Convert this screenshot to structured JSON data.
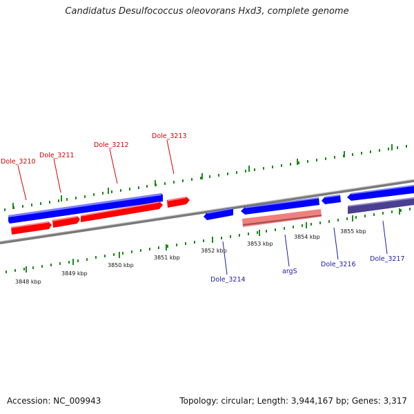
{
  "header": {
    "title": "Candidatus Desulfococcus oleovorans Hxd3, complete genome"
  },
  "footer": {
    "accession": "Accession: NC_009943",
    "stats": "Topology: circular; Length: 3,944,167 bp; Genes: 3,317"
  },
  "scale": {
    "ticks": [
      "3848 kbp",
      "3849 kbp",
      "3850 kbp",
      "3851 kbp",
      "3852 kbp",
      "3853 kbp",
      "3854 kbp",
      "3855 kbp"
    ]
  },
  "genes": {
    "forward_labels": [
      "Dole_3210",
      "Dole_3211",
      "Dole_3212",
      "Dole_3213"
    ],
    "reverse_labels": [
      "Dole_3214",
      "argS",
      "Dole_3216",
      "Dole_3217"
    ]
  },
  "colors": {
    "cds_forward": "#ff0000",
    "cds_reverse": "#0000ff",
    "rna": "#f08080",
    "highlight": "#4b3f8f",
    "backbone": "#8a8a8a",
    "ticks": "#1a8a1a",
    "label_forward": "#d30000",
    "label_reverse": "#1a1aa6"
  }
}
